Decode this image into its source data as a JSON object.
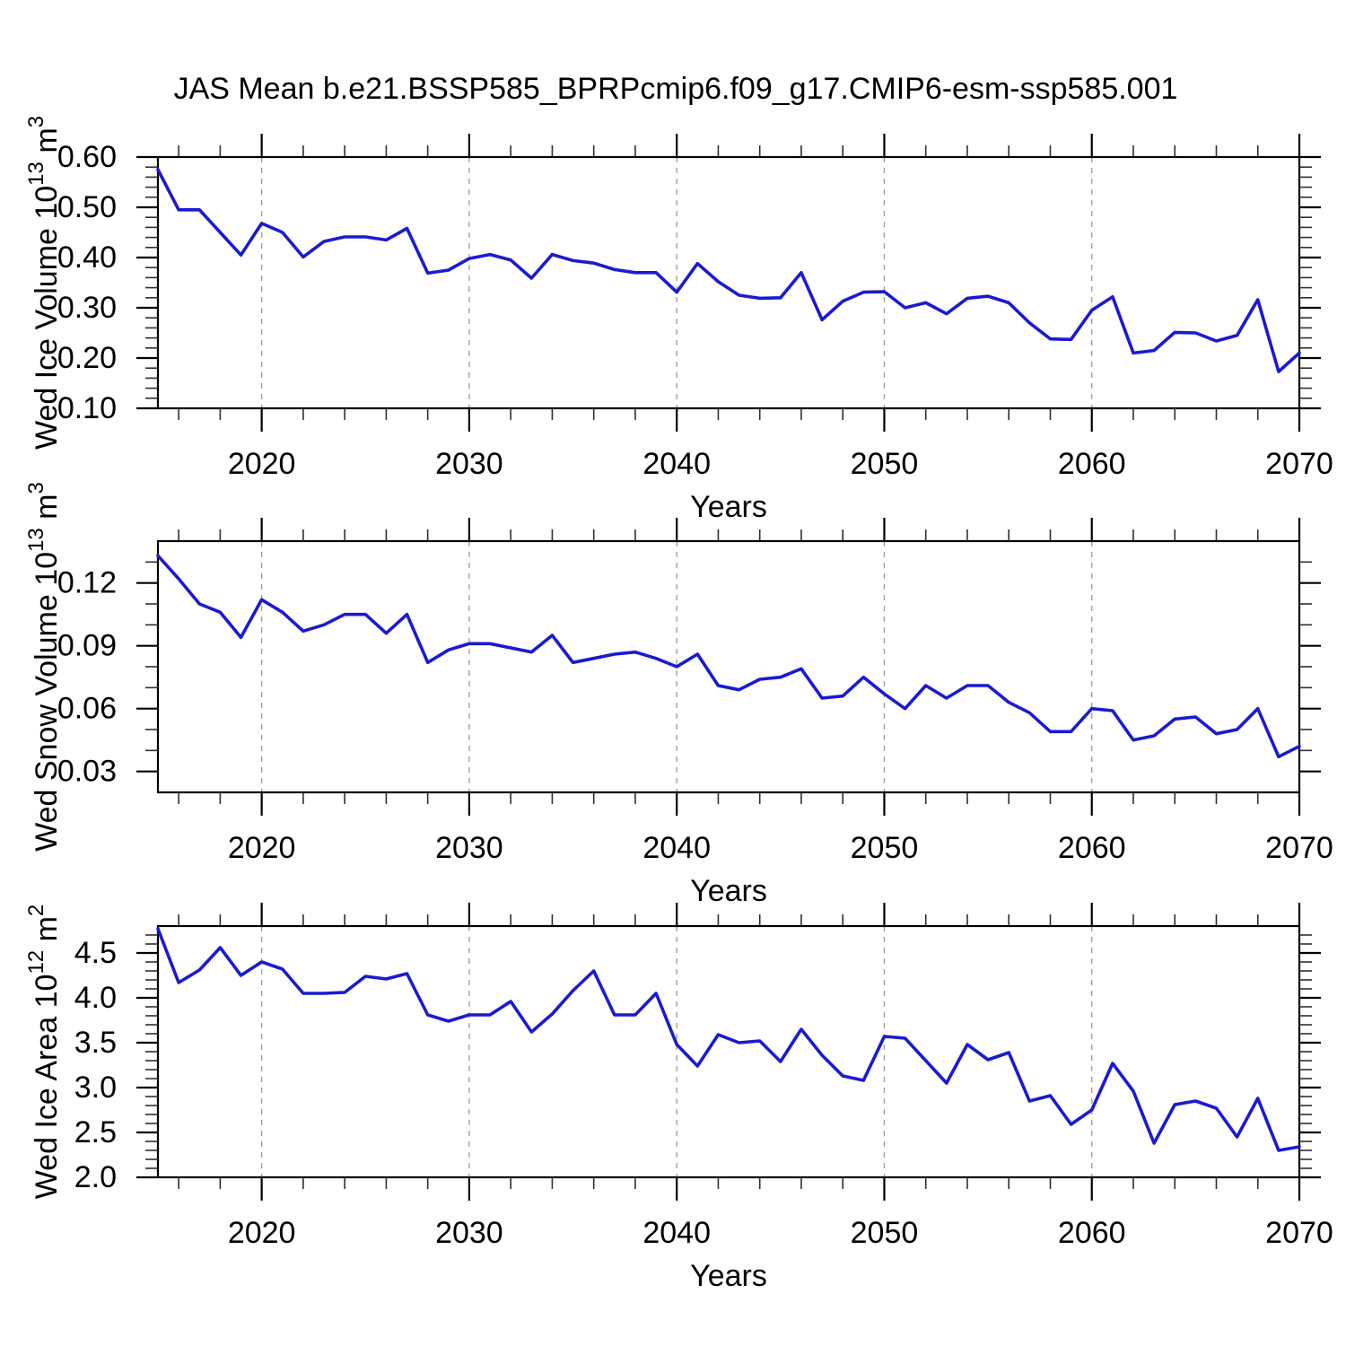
{
  "title": "JAS Mean b.e21.BSSP585_BPRPcmip6.f09_g17.CMIP6-esm-ssp585.001",
  "colors": {
    "line": "#1a1ad2",
    "axis": "#000000",
    "grid": "#9a9a9a",
    "minor_tick": "#2e2e2e",
    "text": "#000000"
  },
  "years": [
    2015,
    2016,
    2017,
    2018,
    2019,
    2020,
    2021,
    2022,
    2023,
    2024,
    2025,
    2026,
    2027,
    2028,
    2029,
    2030,
    2031,
    2032,
    2033,
    2034,
    2035,
    2036,
    2037,
    2038,
    2039,
    2040,
    2041,
    2042,
    2043,
    2044,
    2045,
    2046,
    2047,
    2048,
    2049,
    2050,
    2051,
    2052,
    2053,
    2054,
    2055,
    2056,
    2057,
    2058,
    2059,
    2060,
    2061,
    2062,
    2063,
    2064,
    2065,
    2066,
    2067,
    2068,
    2069,
    2070
  ],
  "chart_data": [
    {
      "type": "line",
      "id": "ice-volume",
      "ylabel": "Wed Ice Volume 10^13 m^3",
      "ylabel_parts": [
        {
          "t": "Wed Ice Volume 10",
          "s": 0
        },
        {
          "t": "13",
          "s": 1
        },
        {
          "t": " m",
          "s": 0
        },
        {
          "t": "3",
          "s": 1
        }
      ],
      "xlabel": "Years",
      "xlim": [
        2015,
        2070
      ],
      "ylim": [
        0.1,
        0.6
      ],
      "ytick_values": [
        0.1,
        0.2,
        0.3,
        0.4,
        0.5,
        0.6
      ],
      "ytick_labels": [
        "0.10",
        "0.20",
        "0.30",
        "0.40",
        "0.50",
        "0.60"
      ],
      "yminor_step": 0.02,
      "xtick_values": [
        2020,
        2030,
        2040,
        2050,
        2060,
        2070
      ],
      "xtick_labels": [
        "2020",
        "2030",
        "2040",
        "2050",
        "2060",
        "2070"
      ],
      "xminor_step": 2,
      "grid_years": [
        2020,
        2030,
        2040,
        2050,
        2060
      ],
      "values": [
        0.575,
        0.495,
        0.495,
        0.45,
        0.405,
        0.468,
        0.45,
        0.401,
        0.432,
        0.441,
        0.441,
        0.435,
        0.458,
        0.369,
        0.375,
        0.398,
        0.406,
        0.395,
        0.359,
        0.406,
        0.394,
        0.389,
        0.376,
        0.37,
        0.37,
        0.331,
        0.388,
        0.352,
        0.325,
        0.319,
        0.32,
        0.37,
        0.276,
        0.313,
        0.331,
        0.332,
        0.3,
        0.31,
        0.288,
        0.319,
        0.323,
        0.31,
        0.27,
        0.238,
        0.237,
        0.295,
        0.322,
        0.21,
        0.215,
        0.251,
        0.25,
        0.234,
        0.245,
        0.316,
        0.173,
        0.21
      ]
    },
    {
      "type": "line",
      "id": "snow-volume",
      "ylabel": "Wed Snow Volume 10^13 m^3",
      "ylabel_parts": [
        {
          "t": "Wed Snow Volume 10",
          "s": 0
        },
        {
          "t": "13",
          "s": 1
        },
        {
          "t": " m",
          "s": 0
        },
        {
          "t": "3",
          "s": 1
        }
      ],
      "xlabel": "Years",
      "xlim": [
        2015,
        2070
      ],
      "ylim": [
        0.02,
        0.14
      ],
      "ytick_values": [
        0.03,
        0.06,
        0.09,
        0.12
      ],
      "ytick_labels": [
        "0.03",
        "0.06",
        "0.09",
        "0.12"
      ],
      "yminor_step": 0.01,
      "xtick_values": [
        2020,
        2030,
        2040,
        2050,
        2060,
        2070
      ],
      "xtick_labels": [
        "2020",
        "2030",
        "2040",
        "2050",
        "2060",
        "2070"
      ],
      "xminor_step": 2,
      "grid_years": [
        2020,
        2030,
        2040,
        2050,
        2060
      ],
      "values": [
        0.133,
        0.122,
        0.11,
        0.106,
        0.094,
        0.112,
        0.106,
        0.097,
        0.1,
        0.105,
        0.105,
        0.096,
        0.105,
        0.082,
        0.088,
        0.091,
        0.091,
        0.089,
        0.087,
        0.095,
        0.082,
        0.084,
        0.086,
        0.087,
        0.084,
        0.08,
        0.086,
        0.071,
        0.069,
        0.074,
        0.075,
        0.079,
        0.065,
        0.066,
        0.075,
        0.067,
        0.06,
        0.071,
        0.065,
        0.071,
        0.071,
        0.063,
        0.058,
        0.049,
        0.049,
        0.06,
        0.059,
        0.045,
        0.047,
        0.055,
        0.056,
        0.048,
        0.05,
        0.06,
        0.037,
        0.042
      ]
    },
    {
      "type": "line",
      "id": "ice-area",
      "ylabel": "Wed Ice Area 10^12 m^2",
      "ylabel_parts": [
        {
          "t": "Wed Ice Area 10",
          "s": 0
        },
        {
          "t": "12",
          "s": 1
        },
        {
          "t": " m",
          "s": 0
        },
        {
          "t": "2",
          "s": 1
        }
      ],
      "xlabel": "Years",
      "xlim": [
        2015,
        2070
      ],
      "ylim": [
        2.0,
        4.8
      ],
      "ytick_values": [
        2.0,
        2.5,
        3.0,
        3.5,
        4.0,
        4.5
      ],
      "ytick_labels": [
        "2.0",
        "2.5",
        "3.0",
        "3.5",
        "4.0",
        "4.5"
      ],
      "yminor_step": 0.1,
      "xtick_values": [
        2020,
        2030,
        2040,
        2050,
        2060,
        2070
      ],
      "xtick_labels": [
        "2020",
        "2030",
        "2040",
        "2050",
        "2060",
        "2070"
      ],
      "xminor_step": 2,
      "grid_years": [
        2020,
        2030,
        2040,
        2050,
        2060
      ],
      "values": [
        4.77,
        4.17,
        4.31,
        4.56,
        4.25,
        4.4,
        4.32,
        4.05,
        4.05,
        4.06,
        4.24,
        4.21,
        4.27,
        3.81,
        3.74,
        3.81,
        3.81,
        3.96,
        3.62,
        3.82,
        4.08,
        4.3,
        3.81,
        3.81,
        4.05,
        3.48,
        3.24,
        3.59,
        3.5,
        3.52,
        3.29,
        3.65,
        3.36,
        3.13,
        3.08,
        3.57,
        3.55,
        3.3,
        3.05,
        3.48,
        3.31,
        3.39,
        2.85,
        2.91,
        2.59,
        2.75,
        3.27,
        2.96,
        2.38,
        2.81,
        2.85,
        2.77,
        2.45,
        2.88,
        2.3,
        2.34
      ]
    }
  ]
}
